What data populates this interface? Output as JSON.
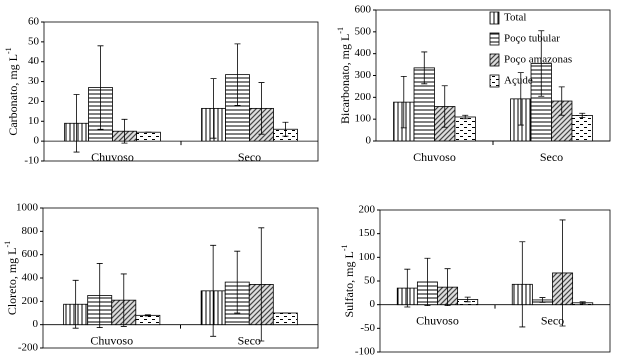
{
  "chart_data": [
    {
      "type": "bar",
      "ylabel": "Carbonato, mg L",
      "ylabel_exponent": "-1",
      "categories": [
        "Chuvoso",
        "Seco"
      ],
      "series": [
        {
          "pattern": "vertical",
          "color": "#000000",
          "values": [
            9,
            16.5
          ],
          "errors": [
            14.5,
            15
          ]
        },
        {
          "pattern": "horizontal",
          "color": "#000000",
          "values": [
            27,
            33.5
          ],
          "errors": [
            21,
            15.5
          ]
        },
        {
          "pattern": "diagonal",
          "color": "#000000",
          "values": [
            5,
            16.5
          ],
          "errors": [
            6,
            13
          ]
        },
        {
          "pattern": "dashed",
          "color": "#000000",
          "values": [
            4.5,
            6
          ],
          "errors": [
            0,
            3.5
          ]
        }
      ],
      "ylim": [
        -10,
        60
      ],
      "yticks": [
        -10,
        0,
        10,
        20,
        30,
        40,
        50,
        60
      ]
    },
    {
      "type": "bar",
      "ylabel": "Bicarbonato, mg L",
      "ylabel_exponent": "-1",
      "categories": [
        "Chuvoso",
        "Seco"
      ],
      "series": [
        {
          "name": "Total",
          "pattern": "vertical",
          "color": "#000000",
          "values": [
            178,
            193
          ],
          "errors": [
            118,
            120
          ]
        },
        {
          "name": "Poço tubular",
          "pattern": "horizontal",
          "color": "#000000",
          "values": [
            335,
            355
          ],
          "errors": [
            73,
            150
          ]
        },
        {
          "name": "Poço amazonas",
          "pattern": "diagonal",
          "color": "#000000",
          "values": [
            158,
            183
          ],
          "errors": [
            95,
            65
          ]
        },
        {
          "name": "Açude",
          "pattern": "dashed",
          "color": "#000000",
          "values": [
            110,
            117
          ],
          "errors": [
            8,
            10
          ]
        }
      ],
      "ylim": [
        0,
        600
      ],
      "yticks": [
        0,
        100,
        200,
        300,
        400,
        500,
        600
      ],
      "legend": "upper right"
    },
    {
      "type": "bar",
      "ylabel": "Cloreto, mg L",
      "ylabel_exponent": "-1",
      "categories": [
        "Chuvoso",
        "Seco"
      ],
      "series": [
        {
          "pattern": "vertical",
          "color": "#000000",
          "values": [
            175,
            290
          ],
          "errors": [
            205,
            390
          ]
        },
        {
          "pattern": "horizontal",
          "color": "#000000",
          "values": [
            250,
            365
          ],
          "errors": [
            275,
            265
          ]
        },
        {
          "pattern": "diagonal",
          "color": "#000000",
          "values": [
            210,
            345
          ],
          "errors": [
            225,
            485
          ]
        },
        {
          "pattern": "dashed",
          "color": "#000000",
          "values": [
            80,
            100
          ],
          "errors": [
            5,
            0
          ]
        }
      ],
      "ylim": [
        -200,
        1000
      ],
      "yticks": [
        -200,
        0,
        200,
        400,
        600,
        800,
        1000
      ]
    },
    {
      "type": "bar",
      "ylabel": "Sulfato, mg L",
      "ylabel_exponent": "-1",
      "categories": [
        "Chuvoso",
        "Seco"
      ],
      "series": [
        {
          "pattern": "vertical",
          "color": "#000000",
          "values": [
            35,
            43
          ],
          "errors": [
            40,
            90
          ]
        },
        {
          "pattern": "horizontal",
          "color": "#000000",
          "values": [
            48,
            10
          ],
          "errors": [
            50,
            5
          ]
        },
        {
          "pattern": "diagonal",
          "color": "#000000",
          "values": [
            37,
            67
          ],
          "errors": [
            39,
            112
          ]
        },
        {
          "pattern": "dashed",
          "color": "#000000",
          "values": [
            11,
            4
          ],
          "errors": [
            5,
            2
          ]
        }
      ],
      "ylim": [
        -100,
        200
      ],
      "yticks": [
        -100,
        -50,
        0,
        50,
        100,
        150,
        200
      ]
    }
  ]
}
